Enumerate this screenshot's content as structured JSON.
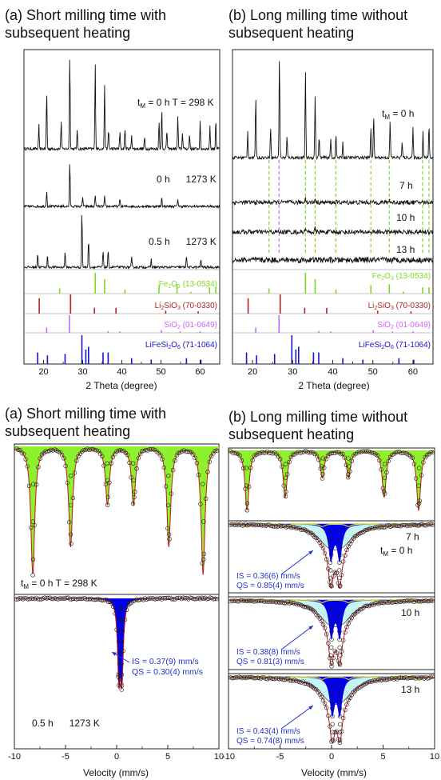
{
  "colors": {
    "fe2o3": "#7ddc1f",
    "li2sio3": "#b22222",
    "sio2": "#cc66ff",
    "lifesi2o6": "#1515d0",
    "mossbauer_green": "#8ef02e",
    "mossbauer_blue": "#0000ee",
    "mossbauer_cyan": "#c6f4f4",
    "fit_line": "#c01818",
    "dashed_green": "#7ddc1f",
    "dashed_purple": "#cc66ff"
  },
  "xrd": {
    "left_title": "(a) Short milling time with\nsubsequent heating",
    "right_title": "(b) Long milling time without\nsubsequent heating",
    "xlabel": "2 Theta (degree)",
    "xticks": [
      "20",
      "30",
      "40",
      "50",
      "60"
    ],
    "left_labels": {
      "tm": "t",
      "tm_sub": "M",
      "t0": " = 0 h  T = 298 K",
      "s2": "0 h      1273 K",
      "s3": "0.5 h      1273 K"
    },
    "right_labels": {
      "tm": "t",
      "tm_sub": "M",
      "t0": " = 0 h",
      "s2": "7 h",
      "s3": "10 h",
      "s4": "13 h"
    },
    "refs": [
      {
        "name": "Fe2O3 (13-0534)",
        "a": "Fe",
        "b": "2",
        "c": "O",
        "d": "3",
        "e": " (13-0534)"
      },
      {
        "name": "Li2SiO3 (70-0330)",
        "a": "Li",
        "b": "2",
        "c": "SiO",
        "d": "3",
        "e": " (70-0330)"
      },
      {
        "name": "SiO2 (01-0649)",
        "a": "SiO",
        "b": "2",
        "c": "",
        "d": "",
        "e": " (01-0649)"
      },
      {
        "name": "LiFeSi2O6 (71-1064)",
        "a": "LiFeSi",
        "b": "2",
        "c": "O",
        "d": "6",
        "e": " (71-1064)"
      }
    ]
  },
  "moss": {
    "left_title": "(a) Short milling time with\nsubsequent heating",
    "right_title": "(b) Long milling time without\nsubsequent heating",
    "xlabel": "Velocity (mm/s)",
    "xticks": [
      "-10",
      "-5",
      "0",
      "5",
      "10"
    ],
    "left_labels": {
      "tm": "t",
      "tm_sub": "M",
      "t0": " = 0 h  T = 298 K",
      "s2": "0.5 h      1273 K",
      "is": "IS = 0.37(9) mm/s",
      "qs": "QS = 0.30(4) mm/s"
    },
    "right_labels": {
      "tm": "t",
      "tm_sub": "M",
      "t0": " = 0 h",
      "s2": "7 h",
      "s3": "10 h",
      "s4": "13 h",
      "is2": "IS = 0.36(6) mm/s",
      "qs2": "QS = 0.85(4) mm/s",
      "is3": "IS = 0.38(8) mm/s",
      "qs3": "QS = 0.81(3) mm/s",
      "is4": "IS = 0.43(4) mm/s",
      "qs4": "QS = 0.74(8) mm/s"
    }
  },
  "chart_data": [
    {
      "type": "line",
      "name": "XRD (a)",
      "xlabel": "2 Theta (degree)",
      "xlim": [
        15,
        65
      ],
      "series": [
        {
          "name": "tM = 0 h T = 298 K",
          "peaks": [
            [
              18.8,
              0.25
            ],
            [
              20.8,
              0.6
            ],
            [
              24.5,
              0.3
            ],
            [
              26.7,
              1.0
            ],
            [
              28.6,
              0.2
            ],
            [
              33.2,
              0.92
            ],
            [
              35.6,
              0.68
            ],
            [
              36.6,
              0.2
            ],
            [
              39.5,
              0.18
            ],
            [
              40.8,
              0.22
            ],
            [
              42.5,
              0.15
            ],
            [
              45.8,
              0.12
            ],
            [
              49.5,
              0.3
            ],
            [
              50.2,
              0.42
            ],
            [
              51.5,
              0.2
            ],
            [
              54.3,
              0.35
            ],
            [
              55.5,
              0.18
            ],
            [
              57.3,
              0.15
            ],
            [
              60.0,
              0.28
            ],
            [
              62.5,
              0.25
            ],
            [
              64.0,
              0.32
            ]
          ]
        },
        {
          "name": "0 h 1273 K",
          "peaks": [
            [
              20.8,
              0.2
            ],
            [
              26.7,
              0.55
            ],
            [
              30.0,
              0.12
            ],
            [
              33.2,
              0.15
            ],
            [
              35.6,
              0.12
            ],
            [
              39.5,
              0.1
            ],
            [
              50.2,
              0.12
            ],
            [
              54.3,
              0.1
            ]
          ]
        },
        {
          "name": "0.5 h 1273 K",
          "peaks": [
            [
              18.5,
              0.18
            ],
            [
              21.0,
              0.15
            ],
            [
              25.5,
              0.2
            ],
            [
              29.8,
              0.72
            ],
            [
              31.5,
              0.35
            ],
            [
              35.2,
              0.2
            ],
            [
              36.5,
              0.2
            ],
            [
              42.5,
              0.12
            ],
            [
              47.5,
              0.1
            ],
            [
              56.5,
              0.15
            ],
            [
              60.2,
              0.1
            ]
          ]
        }
      ],
      "references": [
        {
          "name": "Fe2O3 (13-0534)",
          "lines": [
            [
              24.1,
              0.25
            ],
            [
              33.2,
              1.0
            ],
            [
              35.6,
              0.7
            ],
            [
              40.8,
              0.2
            ],
            [
              49.5,
              0.4
            ],
            [
              54.1,
              0.45
            ],
            [
              57.6,
              0.1
            ],
            [
              62.4,
              0.3
            ],
            [
              64.0,
              0.3
            ]
          ]
        },
        {
          "name": "Li2SiO3 (70-0330)",
          "lines": [
            [
              18.9,
              0.8
            ],
            [
              26.9,
              1.0
            ],
            [
              33.0,
              0.3
            ],
            [
              38.5,
              0.3
            ],
            [
              51.2,
              0.15
            ],
            [
              59.5,
              0.12
            ]
          ]
        },
        {
          "name": "SiO2 (01-0649)",
          "lines": [
            [
              20.8,
              0.3
            ],
            [
              26.6,
              1.0
            ],
            [
              36.5,
              0.1
            ],
            [
              39.5,
              0.08
            ],
            [
              50.1,
              0.15
            ],
            [
              54.9,
              0.08
            ],
            [
              60.0,
              0.08
            ]
          ]
        },
        {
          "name": "LiFeSi2O6 (71-1064)",
          "lines": [
            [
              18.5,
              0.4
            ],
            [
              21.0,
              0.3
            ],
            [
              25.5,
              0.35
            ],
            [
              29.8,
              1.0
            ],
            [
              30.8,
              0.5
            ],
            [
              31.5,
              0.6
            ],
            [
              35.2,
              0.4
            ],
            [
              36.5,
              0.4
            ],
            [
              42.5,
              0.2
            ],
            [
              47.5,
              0.15
            ],
            [
              56.5,
              0.2
            ],
            [
              60.2,
              0.15
            ]
          ]
        }
      ]
    },
    {
      "type": "line",
      "name": "XRD (b)",
      "xlabel": "2 Theta (degree)",
      "xlim": [
        15,
        65
      ],
      "series": [
        {
          "name": "tM = 0 h",
          "peaks": [
            [
              18.8,
              0.25
            ],
            [
              20.8,
              0.6
            ],
            [
              24.5,
              0.3
            ],
            [
              26.7,
              1.0
            ],
            [
              28.6,
              0.2
            ],
            [
              33.2,
              0.82
            ],
            [
              35.6,
              0.6
            ],
            [
              36.6,
              0.2
            ],
            [
              39.5,
              0.18
            ],
            [
              40.8,
              0.22
            ],
            [
              42.5,
              0.15
            ],
            [
              49.5,
              0.3
            ],
            [
              50.2,
              0.42
            ],
            [
              54.3,
              0.35
            ],
            [
              57.3,
              0.15
            ],
            [
              60.0,
              0.28
            ],
            [
              62.5,
              0.25
            ],
            [
              64.0,
              0.32
            ]
          ]
        },
        {
          "name": "7 h",
          "peaks": [
            [
              33.2,
              0.1
            ],
            [
              35.6,
              0.07
            ],
            [
              54.1,
              0.05
            ]
          ]
        },
        {
          "name": "10 h",
          "peaks": [
            [
              33.2,
              0.08
            ],
            [
              35.6,
              0.06
            ]
          ]
        },
        {
          "name": "13 h",
          "peaks": []
        }
      ],
      "references": [
        {
          "name": "Fe2O3 (13-0534)",
          "lines": [
            [
              24.1,
              0.25
            ],
            [
              33.2,
              1.0
            ],
            [
              35.6,
              0.7
            ],
            [
              40.8,
              0.2
            ],
            [
              49.5,
              0.4
            ],
            [
              54.1,
              0.45
            ],
            [
              57.6,
              0.1
            ],
            [
              62.4,
              0.3
            ],
            [
              64.0,
              0.3
            ]
          ]
        },
        {
          "name": "Li2SiO3 (70-0330)",
          "lines": [
            [
              18.9,
              0.8
            ],
            [
              26.9,
              1.0
            ],
            [
              33.0,
              0.3
            ],
            [
              38.5,
              0.3
            ],
            [
              51.2,
              0.15
            ],
            [
              59.5,
              0.12
            ]
          ]
        },
        {
          "name": "SiO2 (01-0649)",
          "lines": [
            [
              20.8,
              0.3
            ],
            [
              26.6,
              1.0
            ],
            [
              36.5,
              0.1
            ],
            [
              39.5,
              0.08
            ],
            [
              50.1,
              0.15
            ],
            [
              54.9,
              0.08
            ],
            [
              60.0,
              0.08
            ]
          ]
        },
        {
          "name": "LiFeSi2O6 (71-1064)",
          "lines": [
            [
              18.5,
              0.4
            ],
            [
              21.0,
              0.3
            ],
            [
              25.5,
              0.35
            ],
            [
              29.8,
              1.0
            ],
            [
              30.8,
              0.5
            ],
            [
              31.5,
              0.6
            ],
            [
              35.2,
              0.4
            ],
            [
              36.5,
              0.4
            ],
            [
              42.5,
              0.2
            ],
            [
              47.5,
              0.15
            ],
            [
              56.5,
              0.2
            ],
            [
              60.2,
              0.15
            ]
          ]
        }
      ]
    },
    {
      "type": "line",
      "name": "Mossbauer (a)",
      "xlabel": "Velocity (mm/s)",
      "xlim": [
        -10,
        10
      ],
      "series": [
        {
          "name": "tM = 0 h T = 298 K",
          "sextet": [
            -8.2,
            -4.5,
            -0.9,
            1.65,
            5.1,
            8.45
          ],
          "depths": [
            1.0,
            0.78,
            0.45,
            0.45,
            0.78,
            1.0
          ]
        },
        {
          "name": "0.5 h 1273 K",
          "doublet": {
            "IS": 0.37,
            "QS": 0.3
          }
        }
      ]
    },
    {
      "type": "line",
      "name": "Mossbauer (b)",
      "xlabel": "Velocity (mm/s)",
      "xlim": [
        -10,
        10
      ],
      "series": [
        {
          "name": "tM = 0 h",
          "sextet": [
            -8.2,
            -4.5,
            -0.9,
            1.65,
            5.1,
            8.45
          ],
          "depths": [
            1.0,
            0.78,
            0.45,
            0.45,
            0.78,
            1.0
          ]
        },
        {
          "name": "7 h",
          "doublet": {
            "IS": 0.36,
            "QS": 0.85
          }
        },
        {
          "name": "10 h",
          "doublet": {
            "IS": 0.38,
            "QS": 0.81
          }
        },
        {
          "name": "13 h",
          "doublet": {
            "IS": 0.43,
            "QS": 0.74
          }
        }
      ]
    }
  ]
}
